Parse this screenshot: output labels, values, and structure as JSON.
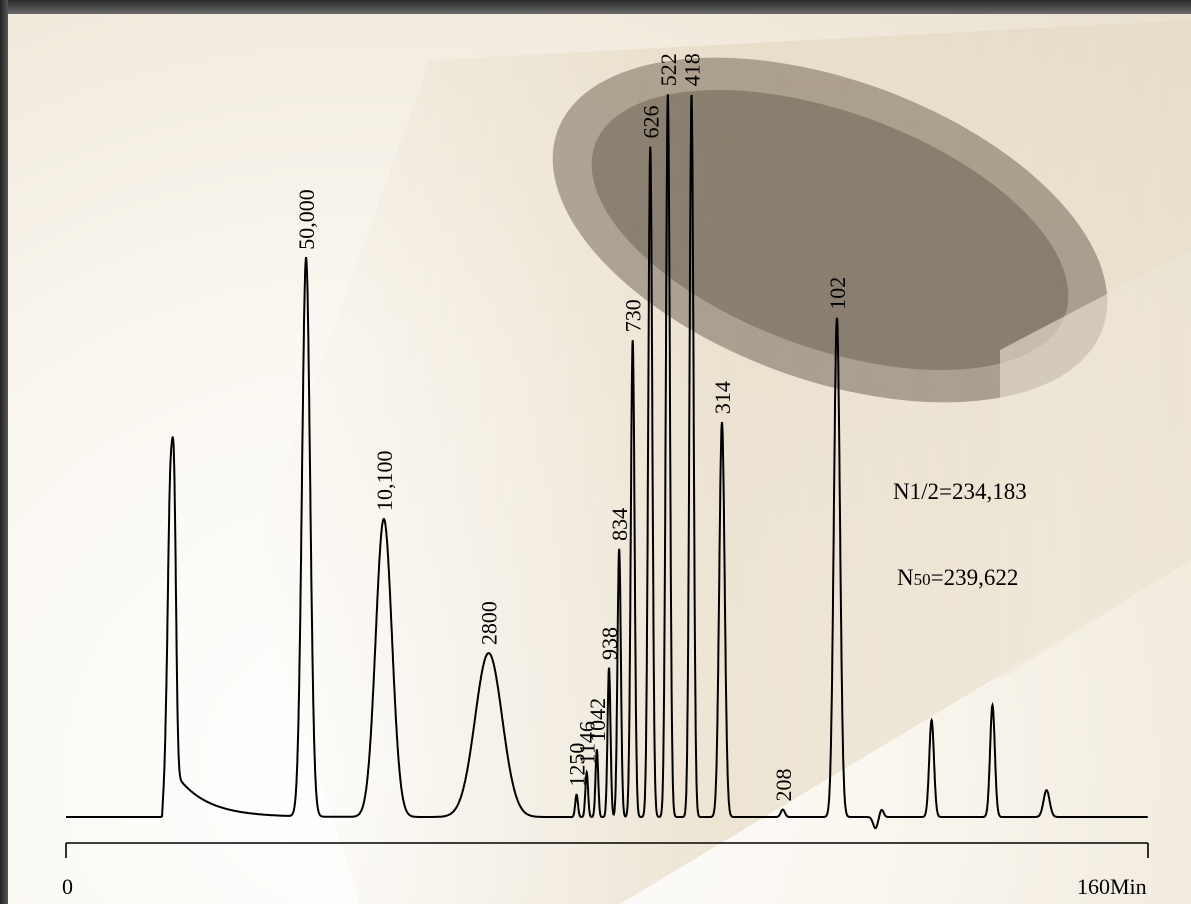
{
  "chart_data": {
    "type": "line",
    "xlabel": "",
    "ylabel": "",
    "xlim": [
      0,
      160
    ],
    "x_tick_labels": [
      "0",
      "160Min"
    ],
    "peaks": [
      {
        "label": "50,000",
        "time": 35.5,
        "height": 0.75
      },
      {
        "label": "10,100",
        "time": 47.0,
        "height": 0.4
      },
      {
        "label": "2800",
        "time": 62.5,
        "height": 0.22
      },
      {
        "label": "1250",
        "time": 75.5,
        "height": 0.03
      },
      {
        "label": "1146",
        "time": 77.0,
        "height": 0.06
      },
      {
        "label": "1042",
        "time": 78.5,
        "height": 0.09
      },
      {
        "label": "938",
        "time": 80.3,
        "height": 0.2
      },
      {
        "label": "834",
        "time": 81.8,
        "height": 0.36
      },
      {
        "label": "730",
        "time": 83.8,
        "height": 0.64
      },
      {
        "label": "626",
        "time": 86.4,
        "height": 0.9
      },
      {
        "label": "522",
        "time": 89.0,
        "height": 0.97
      },
      {
        "label": "418",
        "time": 92.5,
        "height": 0.97
      },
      {
        "label": "314",
        "time": 97.0,
        "height": 0.53
      },
      {
        "label": "208",
        "time": 106.0,
        "height": 0.01
      },
      {
        "label": "102",
        "time": 114.0,
        "height": 0.67
      }
    ],
    "annotations": [
      "N1/2=234,183",
      "N50=239,622"
    ]
  }
}
